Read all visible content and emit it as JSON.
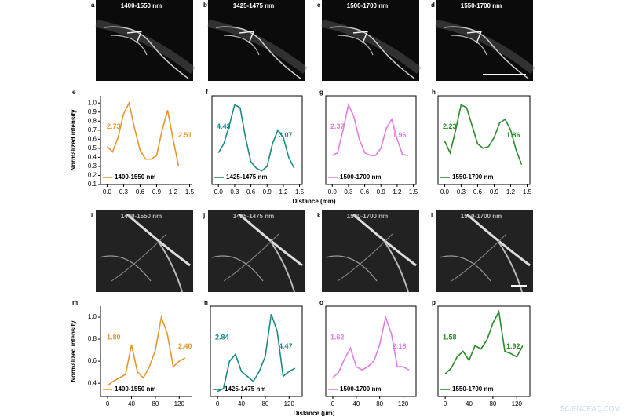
{
  "images": [
    {
      "panel": "a",
      "label": "1400-1550 nm"
    },
    {
      "panel": "b",
      "label": "1425-1475 nm"
    },
    {
      "panel": "c",
      "label": "1500-1700 nm"
    },
    {
      "panel": "d",
      "label": "1550-1700 nm"
    },
    {
      "panel": "i",
      "label": "1400-1550 nm"
    },
    {
      "panel": "j",
      "label": "1425-1475 nm"
    },
    {
      "panel": "k",
      "label": "1500-1700 nm"
    },
    {
      "panel": "l",
      "label": "1550-1700 nm"
    }
  ],
  "watermark": "SCIENCEAQ.COM",
  "chart_data": [
    {
      "type": "line",
      "panel": "e",
      "ylabel": "Normalized intensity",
      "xlabel": "Distance (mm)",
      "xlim": [
        -0.12,
        1.55
      ],
      "ylim": [
        0.1,
        1.08
      ],
      "xticks": [
        {
          "value": 0,
          "label": "0.0"
        },
        0.3,
        0.6,
        0.9,
        1.2,
        1.5
      ],
      "yticks": [
        0.1,
        0.2,
        0.3,
        0.4,
        0.5,
        0.6,
        0.7,
        0.8,
        0.9,
        {
          "value": 1,
          "label": "1.0"
        }
      ],
      "x": [
        0,
        0.1,
        0.2,
        0.3,
        0.4,
        0.5,
        0.6,
        0.7,
        0.8,
        0.9,
        1.0,
        1.1,
        1.2,
        1.3
      ],
      "series": [
        {
          "name": "1400-1550 nm",
          "color": "#e6962a",
          "values": [
            0.52,
            0.46,
            0.62,
            0.88,
            1.0,
            0.72,
            0.48,
            0.38,
            0.38,
            0.42,
            0.7,
            0.92,
            0.6,
            0.3
          ]
        }
      ],
      "annotations": [
        2.73,
        2.51
      ]
    },
    {
      "type": "line",
      "panel": "f",
      "xlim": [
        -0.12,
        1.55
      ],
      "ylim": [
        0.1,
        1.08
      ],
      "xticks": [
        {
          "value": 0,
          "label": "0.0"
        },
        0.3,
        0.6,
        0.9,
        1.2,
        1.5
      ],
      "x": [
        0,
        0.1,
        0.2,
        0.3,
        0.4,
        0.5,
        0.6,
        0.7,
        0.8,
        0.9,
        1.0,
        1.1,
        1.2,
        1.3,
        1.4
      ],
      "series": [
        {
          "name": "1425-1475 nm",
          "color": "#1b8a84",
          "values": [
            0.45,
            0.55,
            0.75,
            0.98,
            0.95,
            0.62,
            0.35,
            0.28,
            0.25,
            0.3,
            0.55,
            0.7,
            0.62,
            0.4,
            0.28
          ]
        }
      ],
      "annotations": [
        4.43,
        3.07
      ]
    },
    {
      "type": "line",
      "panel": "g",
      "xlim": [
        -0.12,
        1.55
      ],
      "ylim": [
        0.1,
        1.08
      ],
      "xticks": [
        {
          "value": 0,
          "label": "0.0"
        },
        0.3,
        0.6,
        0.9,
        1.2,
        1.5
      ],
      "x": [
        0,
        0.1,
        0.2,
        0.3,
        0.4,
        0.5,
        0.6,
        0.7,
        0.8,
        0.9,
        1.0,
        1.1,
        1.2,
        1.3,
        1.4
      ],
      "series": [
        {
          "name": "1500-1700 nm",
          "color": "#e07ee0",
          "values": [
            0.42,
            0.45,
            0.7,
            0.98,
            0.85,
            0.6,
            0.45,
            0.42,
            0.42,
            0.5,
            0.72,
            0.82,
            0.6,
            0.43,
            0.42
          ]
        }
      ],
      "annotations": [
        2.37,
        1.96
      ]
    },
    {
      "type": "line",
      "panel": "h",
      "xlim": [
        -0.12,
        1.55
      ],
      "ylim": [
        0.1,
        1.08
      ],
      "xticks": [
        {
          "value": 0,
          "label": "0.0"
        },
        0.3,
        0.6,
        0.9,
        1.2,
        1.5
      ],
      "x": [
        0,
        0.1,
        0.2,
        0.3,
        0.4,
        0.5,
        0.6,
        0.7,
        0.8,
        0.9,
        1.0,
        1.1,
        1.2,
        1.3,
        1.4
      ],
      "series": [
        {
          "name": "1550-1700 nm",
          "color": "#2a8a2a",
          "values": [
            0.58,
            0.45,
            0.7,
            0.98,
            0.95,
            0.75,
            0.55,
            0.5,
            0.52,
            0.62,
            0.78,
            0.82,
            0.7,
            0.48,
            0.32
          ]
        }
      ],
      "annotations": [
        2.23,
        1.86
      ]
    },
    {
      "type": "line",
      "panel": "m",
      "ylabel": "Normalized intensity",
      "xlabel": "Distance (μm)",
      "xlim": [
        -12,
        142
      ],
      "ylim": [
        0.28,
        1.1
      ],
      "xticks": [
        0,
        40,
        80,
        120
      ],
      "yticks": [
        0.4,
        0.6,
        0.8,
        {
          "value": 1,
          "label": "1.0"
        }
      ],
      "x": [
        0,
        10,
        20,
        30,
        40,
        50,
        60,
        70,
        80,
        90,
        100,
        110,
        120,
        130
      ],
      "series": [
        {
          "name": "1400-1550 nm",
          "color": "#e6962a",
          "values": [
            0.38,
            0.42,
            0.45,
            0.48,
            0.75,
            0.5,
            0.45,
            0.55,
            0.7,
            1.0,
            0.85,
            0.55,
            0.6,
            0.63
          ]
        }
      ],
      "annotations": [
        {
          "value": 1.8,
          "label": "1.80"
        },
        {
          "value": 2.4,
          "label": "2.40"
        }
      ]
    },
    {
      "type": "line",
      "panel": "n",
      "xlim": [
        -12,
        142
      ],
      "ylim": [
        0.2,
        1.1
      ],
      "xticks": [
        0,
        40,
        80,
        120
      ],
      "x": [
        0,
        10,
        20,
        30,
        40,
        50,
        60,
        70,
        80,
        90,
        100,
        110,
        120,
        130
      ],
      "series": [
        {
          "name": "1425-1475 nm",
          "color": "#1b8a84",
          "values": [
            0.25,
            0.28,
            0.55,
            0.62,
            0.45,
            0.4,
            0.35,
            0.45,
            0.6,
            1.02,
            0.85,
            0.4,
            0.45,
            0.48
          ]
        }
      ],
      "annotations": [
        2.84,
        4.47
      ]
    },
    {
      "type": "line",
      "panel": "o",
      "xlim": [
        -12,
        142
      ],
      "ylim": [
        0.28,
        1.1
      ],
      "xticks": [
        0,
        40,
        80,
        120
      ],
      "x": [
        0,
        10,
        20,
        30,
        40,
        50,
        60,
        70,
        80,
        90,
        100,
        110,
        120,
        130
      ],
      "series": [
        {
          "name": "1500-1700 nm",
          "color": "#e07ee0",
          "values": [
            0.45,
            0.5,
            0.62,
            0.72,
            0.55,
            0.52,
            0.55,
            0.6,
            0.75,
            1.0,
            0.85,
            0.55,
            0.55,
            0.52
          ]
        }
      ],
      "annotations": [
        1.62,
        2.18
      ]
    },
    {
      "type": "line",
      "panel": "p",
      "xlim": [
        -12,
        142
      ],
      "ylim": [
        0.3,
        1.1
      ],
      "xticks": [
        0,
        40,
        80,
        120
      ],
      "x": [
        0,
        10,
        20,
        30,
        40,
        50,
        60,
        70,
        80,
        90,
        100,
        110,
        120,
        130
      ],
      "series": [
        {
          "name": "1550-1700 nm",
          "color": "#2a8a2a",
          "values": [
            0.5,
            0.55,
            0.65,
            0.7,
            0.62,
            0.75,
            0.72,
            0.8,
            0.95,
            1.05,
            0.7,
            0.68,
            0.65,
            0.75
          ]
        }
      ],
      "annotations": [
        1.58,
        1.92
      ]
    }
  ]
}
